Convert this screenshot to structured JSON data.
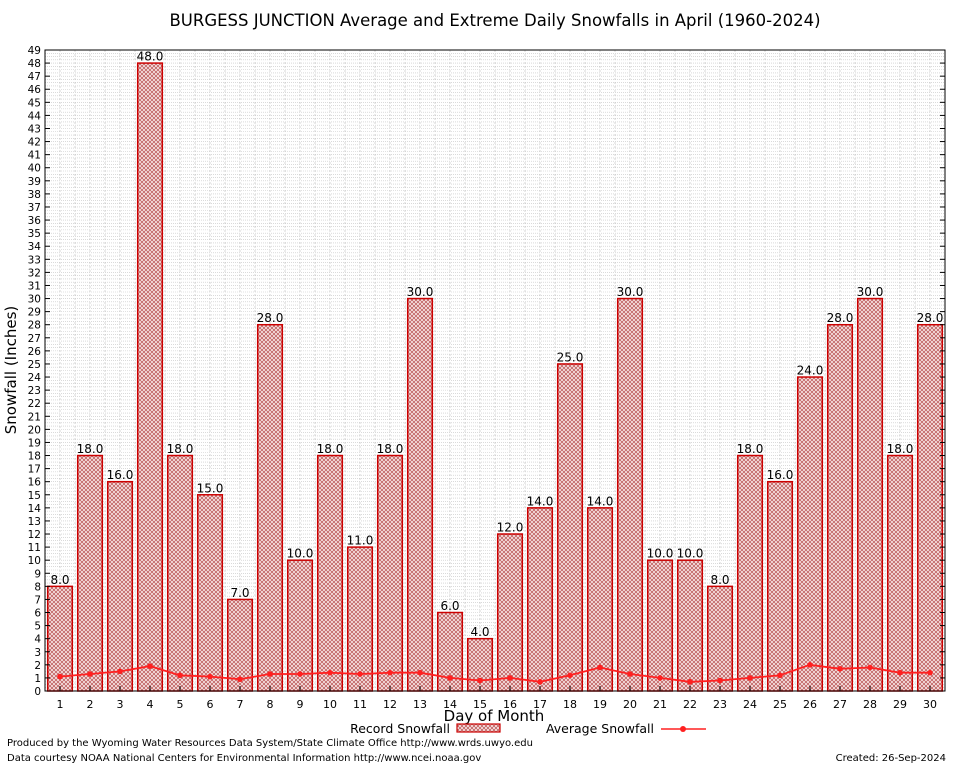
{
  "chart_data": {
    "type": "bar",
    "title": "BURGESS JUNCTION Average and Extreme Daily Snowfalls in April (1960-2024)",
    "xlabel": "Day of Month",
    "ylabel": "Snowfall (Inches)",
    "ylim": [
      0,
      49
    ],
    "grid": true,
    "legend_position": "bottom",
    "categories": [
      "1",
      "2",
      "3",
      "4",
      "5",
      "6",
      "7",
      "8",
      "9",
      "10",
      "11",
      "12",
      "13",
      "14",
      "15",
      "16",
      "17",
      "18",
      "19",
      "20",
      "21",
      "22",
      "23",
      "24",
      "25",
      "26",
      "27",
      "28",
      "29",
      "30"
    ],
    "series": [
      {
        "name": "Record Snowfall",
        "type": "bar",
        "color": "#cc0000",
        "values": [
          8.0,
          18.0,
          16.0,
          48.0,
          18.0,
          15.0,
          7.0,
          28.0,
          10.0,
          18.0,
          11.0,
          18.0,
          30.0,
          6.0,
          4.0,
          12.0,
          14.0,
          25.0,
          14.0,
          30.0,
          10.0,
          10.0,
          8.0,
          18.0,
          16.0,
          24.0,
          28.0,
          30.0,
          18.0,
          28.0
        ],
        "labels": [
          "8.0",
          "18.0",
          "16.0",
          "48.0",
          "18.0",
          "15.0",
          "7.0",
          "28.0",
          "10.0",
          "18.0",
          "11.0",
          "18.0",
          "30.0",
          "6.0",
          "4.0",
          "12.0",
          "14.0",
          "25.0",
          "14.0",
          "30.0",
          "10.0",
          "10.0",
          "8.0",
          "18.0",
          "16.0",
          "24.0",
          "28.0",
          "30.0",
          "18.0",
          "28.0"
        ]
      },
      {
        "name": "Average Snowfall",
        "type": "line",
        "color": "#ff2020",
        "values": [
          1.1,
          1.3,
          1.5,
          1.9,
          1.2,
          1.1,
          0.9,
          1.3,
          1.3,
          1.4,
          1.3,
          1.4,
          1.4,
          1.0,
          0.8,
          1.0,
          0.7,
          1.2,
          1.8,
          1.3,
          1.0,
          0.7,
          0.8,
          1.0,
          1.2,
          2.0,
          1.7,
          1.8,
          1.4,
          1.4
        ]
      }
    ]
  },
  "footer": {
    "produced_by": "Produced by the Wyoming Water Resources Data System/State Climate Office http://www.wrds.uwyo.edu",
    "courtesy": "Data courtesy NOAA National Centers for Environmental Information http://www.ncei.noaa.gov",
    "created": "Created:  26-Sep-2024"
  }
}
